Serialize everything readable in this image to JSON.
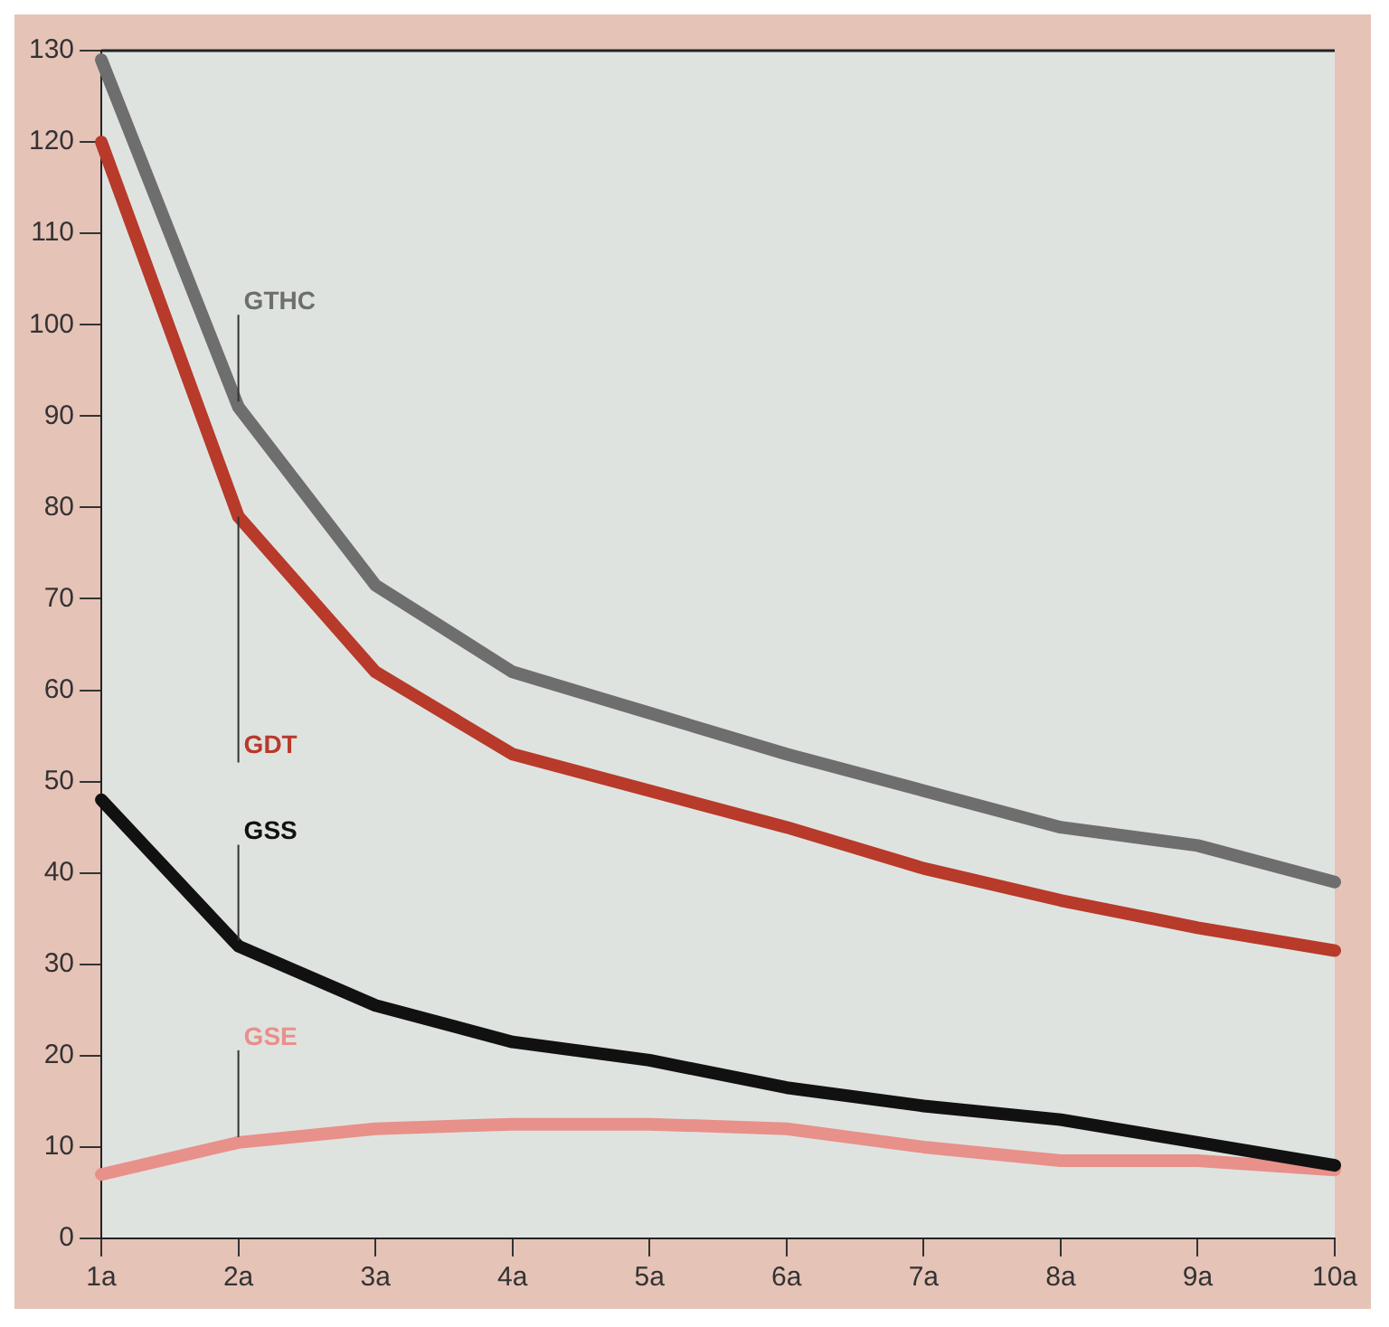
{
  "chart_data": {
    "type": "line",
    "categories": [
      "1a",
      "2a",
      "3a",
      "4a",
      "5a",
      "6a",
      "7a",
      "8a",
      "9a",
      "10a"
    ],
    "series": [
      {
        "name": "GTHC",
        "color": "#6e6e6e",
        "values": [
          129,
          91,
          71.5,
          62,
          57.5,
          53,
          49,
          45,
          43,
          39
        ]
      },
      {
        "name": "GDT",
        "color": "#b83a2a",
        "values": [
          120,
          79,
          62,
          53,
          49,
          45,
          40.5,
          37,
          34,
          31.5
        ]
      },
      {
        "name": "GSS",
        "color": "#111111",
        "values": [
          48,
          32,
          25.5,
          21.5,
          19.5,
          16.5,
          14.5,
          13,
          10.5,
          8
        ]
      },
      {
        "name": "GSE",
        "color": "#e8908a",
        "values": [
          7,
          10.5,
          12,
          12.5,
          12.5,
          12,
          10,
          8.5,
          8.5,
          7.5
        ]
      }
    ],
    "ylim": [
      0,
      130
    ],
    "yticks": [
      0,
      10,
      20,
      30,
      40,
      50,
      60,
      70,
      80,
      90,
      100,
      110,
      120,
      130
    ],
    "grid": false,
    "legend": false,
    "marker": "none",
    "line_style": "solid"
  }
}
